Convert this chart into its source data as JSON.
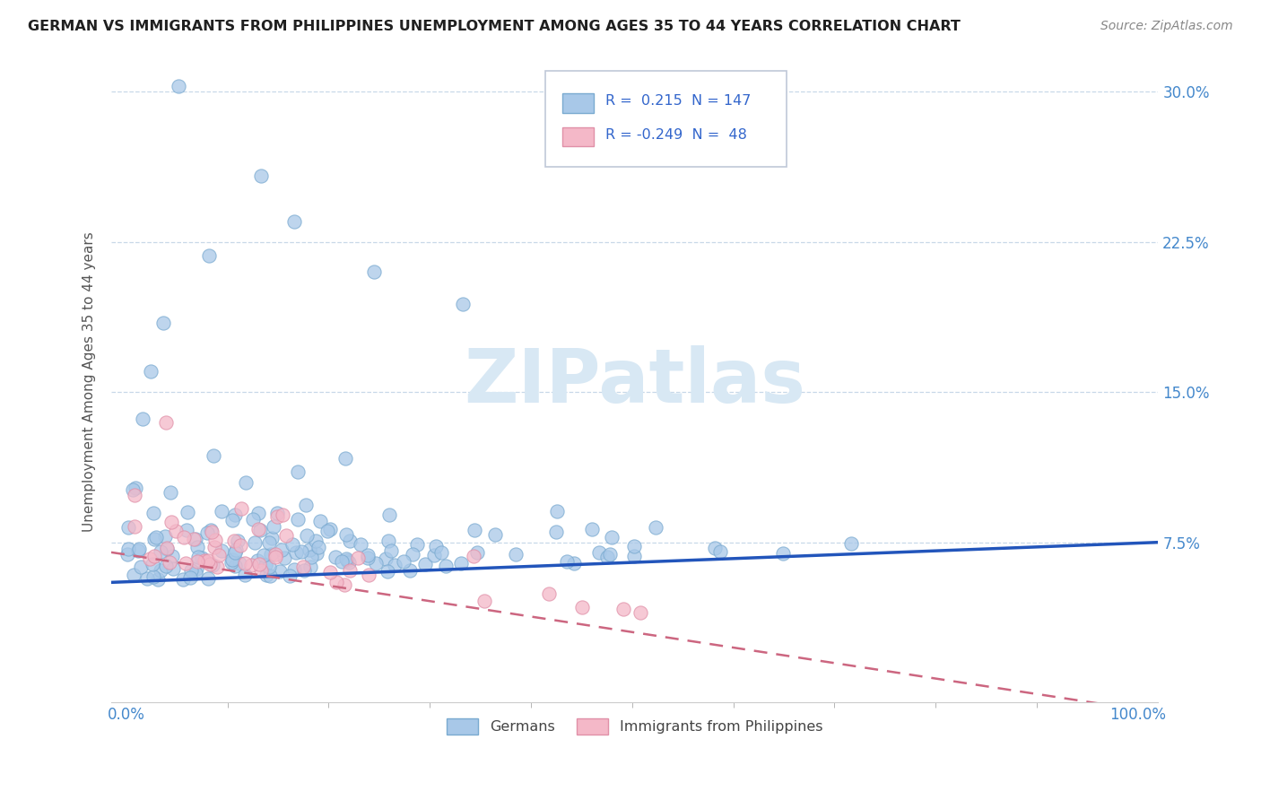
{
  "title": "GERMAN VS IMMIGRANTS FROM PHILIPPINES UNEMPLOYMENT AMONG AGES 35 TO 44 YEARS CORRELATION CHART",
  "source": "Source: ZipAtlas.com",
  "ylabel": "Unemployment Among Ages 35 to 44 years",
  "r_german": 0.215,
  "n_german": 147,
  "r_phil": -0.249,
  "n_phil": 48,
  "german_color": "#a8c8e8",
  "german_edge_color": "#7aaad0",
  "phil_color": "#f4b8c8",
  "phil_edge_color": "#e090a8",
  "german_line_color": "#2255bb",
  "phil_line_color": "#cc6680",
  "watermark_color": "#d8e8f4",
  "background_color": "#ffffff",
  "grid_color": "#c8d8e8",
  "title_color": "#202020",
  "axis_label_color": "#4488cc",
  "legend_text_color": "#3366cc",
  "german_line_start": 0.055,
  "german_line_end": 0.075,
  "phil_line_start": 0.07,
  "phil_line_end": -0.01,
  "ylim_min": -0.005,
  "ylim_max": 0.315,
  "xlim_min": -0.015,
  "xlim_max": 1.02
}
